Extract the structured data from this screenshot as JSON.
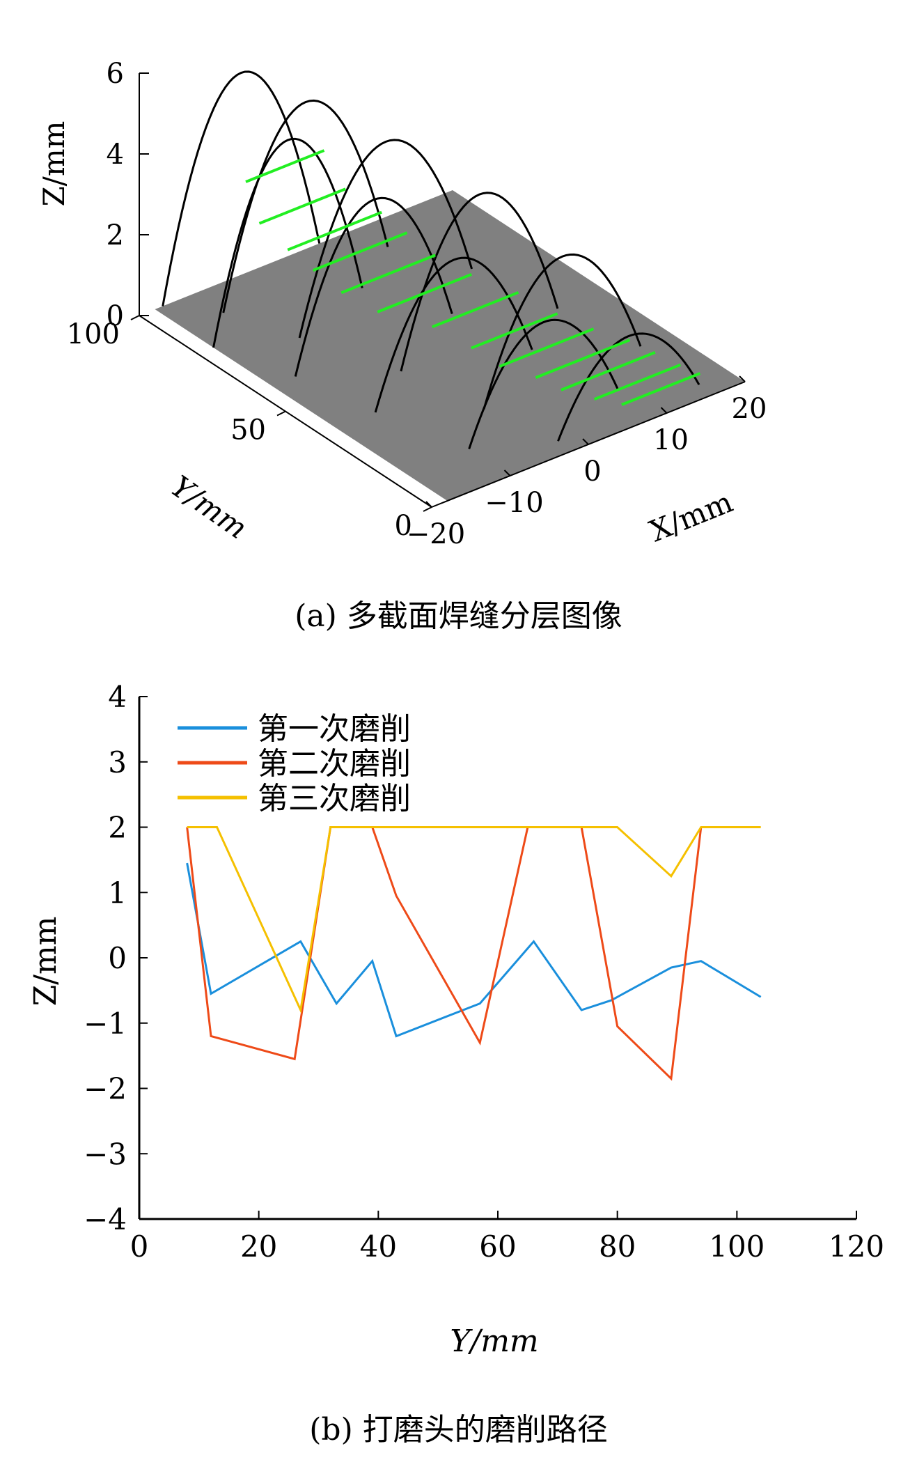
{
  "chart_data": [
    {
      "type": "line",
      "caption": "(a) 多截面焊缝分层图像",
      "xlabel": "X/mm",
      "ylabel": "Y/mm",
      "zlabel": "Z/mm",
      "xlim": [
        -20,
        20
      ],
      "ylim": [
        0,
        100
      ],
      "zlim": [
        0,
        6
      ],
      "x_ticks": [
        "−20",
        "−10",
        "0",
        "10",
        "20"
      ],
      "y_ticks": [
        "0",
        "50",
        "100"
      ],
      "z_ticks": [
        "0",
        "2",
        "4",
        "6"
      ],
      "colors": {
        "profile": "#000000",
        "layer": "#22ee22",
        "plane": "#808080"
      },
      "profiles": [
        {
          "y": 100,
          "x0": -17,
          "x1": 3,
          "peak": 5.0
        },
        {
          "y": 90,
          "x0": -13,
          "x1": 8,
          "peak": 4.4
        },
        {
          "y": 80,
          "x0": -18,
          "x1": 1,
          "peak": 4.4
        },
        {
          "y": 72,
          "x0": -10,
          "x1": 12,
          "peak": 4.0
        },
        {
          "y": 60,
          "x0": -15,
          "x1": 5,
          "peak": 3.6
        },
        {
          "y": 48,
          "x0": -6,
          "x1": 14,
          "peak": 3.6
        },
        {
          "y": 38,
          "x0": -13,
          "x1": 7,
          "peak": 3.0
        },
        {
          "y": 25,
          "x0": -4,
          "x1": 16,
          "peak": 3.0
        },
        {
          "y": 14,
          "x0": -10,
          "x1": 9,
          "peak": 2.4
        },
        {
          "y": 5,
          "x0": -2,
          "x1": 16,
          "peak": 1.9
        }
      ],
      "layers": [
        {
          "x0": -12,
          "x1": -2,
          "y": 85,
          "z": 3.4
        },
        {
          "x0": -14,
          "x1": -3,
          "y": 75,
          "z": 3.0
        },
        {
          "x0": -13,
          "x1": -1,
          "y": 68,
          "z": 2.6
        },
        {
          "x0": -12,
          "x1": 0,
          "y": 62,
          "z": 2.3
        },
        {
          "x0": -11,
          "x1": 1,
          "y": 55,
          "z": 2.0
        },
        {
          "x0": -9,
          "x1": 3,
          "y": 48,
          "z": 1.7
        },
        {
          "x0": -5,
          "x1": 6,
          "y": 40,
          "z": 1.4
        },
        {
          "x0": -3,
          "x1": 8,
          "y": 32,
          "z": 1.1
        },
        {
          "x0": -2,
          "x1": 10,
          "y": 25,
          "z": 0.9
        },
        {
          "x0": 0,
          "x1": 12,
          "y": 18,
          "z": 0.8
        },
        {
          "x0": 1,
          "x1": 13,
          "y": 12,
          "z": 0.7
        },
        {
          "x0": 3,
          "x1": 14,
          "y": 6,
          "z": 0.6
        },
        {
          "x0": 5,
          "x1": 15,
          "y": 2,
          "z": 0.5
        }
      ]
    },
    {
      "type": "line",
      "caption": "(b) 打磨头的磨削路径",
      "xlabel": "Y/mm",
      "ylabel": "Z/mm",
      "xlim": [
        0,
        120
      ],
      "ylim": [
        -4,
        4
      ],
      "x_ticks": [
        0,
        20,
        40,
        60,
        80,
        100,
        120
      ],
      "y_ticks": [
        4,
        3,
        2,
        1,
        0,
        -1,
        -2,
        -3,
        -4
      ],
      "y_tick_labels": [
        "4",
        "3",
        "2",
        "1",
        "0",
        "−1",
        "−2",
        "−3",
        "−4"
      ],
      "legend_position": "top-left",
      "series": [
        {
          "name": "第一次磨削",
          "color": "#1a8fdc",
          "x": [
            8,
            12,
            27,
            33,
            39,
            43,
            57,
            66,
            74,
            79,
            89,
            94,
            104
          ],
          "y": [
            1.45,
            -0.55,
            0.25,
            -0.7,
            -0.05,
            -1.2,
            -0.7,
            0.25,
            -0.8,
            -0.65,
            -0.15,
            -0.05,
            -0.6
          ]
        },
        {
          "name": "第二次磨削",
          "color": "#ee4a18",
          "x": [
            8,
            12,
            26,
            32,
            39,
            43,
            57,
            65,
            74,
            80,
            89,
            94
          ],
          "y": [
            2.0,
            -1.2,
            -1.55,
            2.0,
            2.0,
            0.95,
            -1.3,
            2.0,
            2.0,
            -1.05,
            -1.85,
            2.0
          ]
        },
        {
          "name": "第三次磨削",
          "color": "#f5c000",
          "x": [
            8,
            13,
            27,
            32,
            80,
            89,
            94,
            104
          ],
          "y": [
            2.0,
            2.0,
            -0.8,
            2.0,
            2.0,
            1.25,
            2.0,
            2.0
          ]
        }
      ]
    }
  ]
}
